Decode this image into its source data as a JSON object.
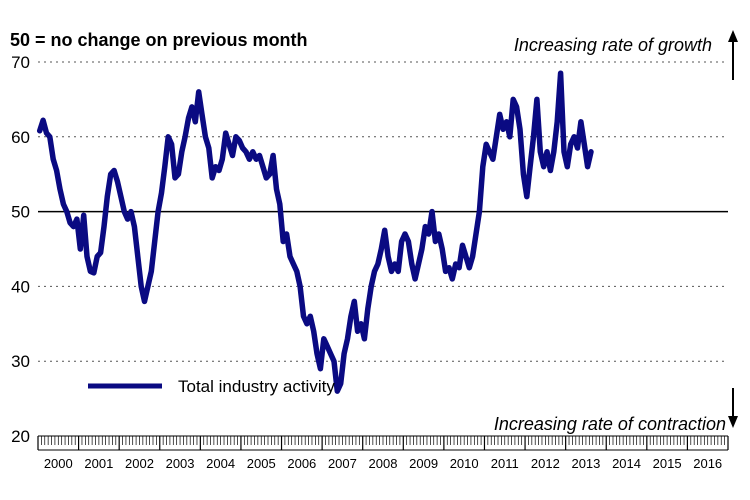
{
  "chart_data": {
    "type": "line",
    "note": "50 = no change on previous month",
    "annotations": {
      "top": "Increasing rate of growth",
      "bottom": "Increasing rate of contraction"
    },
    "ylim": [
      20,
      70
    ],
    "yticks": [
      "20",
      "30",
      "40",
      "50",
      "60",
      "70"
    ],
    "x_labels": [
      "2000",
      "2001",
      "2002",
      "2003",
      "2004",
      "2005",
      "2006",
      "2007",
      "2008",
      "2009",
      "2010",
      "2011",
      "2012",
      "2013",
      "2014",
      "2015",
      "2016"
    ],
    "reference_line": 50,
    "grid": "dotted horizontal at 30, 40, 60, 70",
    "legend_position": "bottom-left",
    "colors": {
      "series": "#0a0a82",
      "reference": "#000000",
      "grid": "#555555"
    },
    "series": [
      {
        "name": "Total industry activity",
        "x_start": "2000-01",
        "frequency": "monthly",
        "values": [
          60.8,
          62.2,
          60.5,
          60.0,
          57.0,
          55.5,
          53.0,
          51.0,
          50.0,
          48.5,
          48.0,
          49.0,
          45.0,
          49.5,
          44.0,
          42.0,
          41.8,
          44.0,
          44.5,
          48.0,
          52.0,
          55.0,
          55.5,
          54.0,
          52.0,
          50.0,
          49.0,
          50.0,
          48.0,
          44.0,
          40.0,
          38.0,
          40.0,
          42.0,
          46.0,
          50.0,
          52.5,
          56.0,
          60.0,
          59.0,
          54.5,
          55.0,
          58.0,
          60.0,
          62.5,
          64.0,
          62.0,
          66.0,
          63.0,
          60.0,
          58.5,
          54.5,
          56.0,
          55.5,
          57.0,
          60.5,
          59.0,
          57.5,
          60.0,
          59.5,
          58.5,
          58.0,
          57.0,
          58.0,
          57.0,
          57.5,
          56.0,
          54.5,
          55.0,
          57.5,
          53.0,
          51.0,
          46.0,
          47.0,
          44.0,
          43.0,
          42.0,
          40.0,
          36.0,
          35.0,
          36.0,
          34.0,
          31.0,
          29.0,
          33.0,
          32.0,
          31.0,
          30.0,
          26.0,
          27.0,
          31.0,
          33.0,
          36.0,
          38.0,
          34.0,
          35.0,
          33.0,
          37.0,
          40.0,
          42.0,
          43.0,
          45.0,
          47.5,
          44.0,
          42.0,
          43.0,
          42.0,
          46.0,
          47.0,
          46.0,
          43.0,
          41.0,
          43.0,
          45.0,
          48.0,
          47.0,
          50.0,
          46.0,
          47.0,
          45.0,
          42.0,
          42.5,
          41.0,
          43.0,
          42.5,
          45.5,
          44.0,
          42.5,
          44.0,
          47.0,
          50.0,
          56.0,
          59.0,
          58.0,
          57.0,
          60.0,
          63.0,
          61.0,
          62.0,
          60.0,
          65.0,
          64.0,
          61.0,
          55.0,
          52.0,
          56.0,
          60.0,
          65.0,
          58.0,
          56.0,
          58.0,
          55.5,
          58.0,
          62.0,
          68.5,
          58.0,
          56.0,
          59.0,
          60.0,
          58.5,
          62.0,
          59.0,
          56.0,
          58.0
        ]
      }
    ]
  }
}
